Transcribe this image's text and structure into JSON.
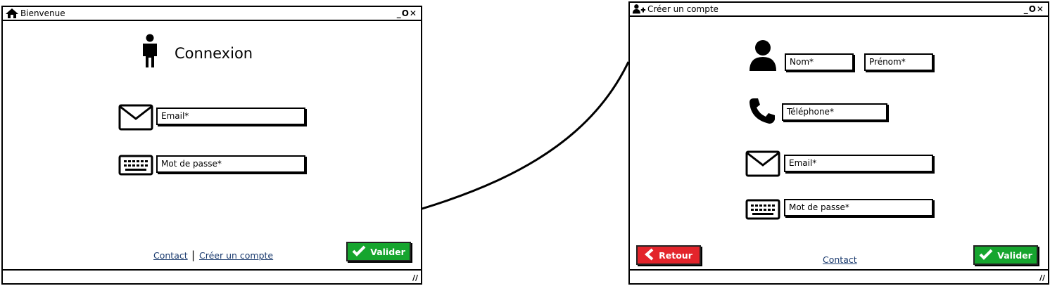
{
  "login_window": {
    "title": "Bienvenue",
    "window_controls": "_O✕",
    "heading": "Connexion",
    "email_placeholder": "Email*",
    "password_placeholder": "Mot de passe*",
    "contact_link": "Contact",
    "separator": "|",
    "create_account_link": "Créer un compte",
    "submit_label": "Valider"
  },
  "register_window": {
    "title": "Créer un compte",
    "window_controls": "_O✕",
    "last_name_placeholder": "Nom*",
    "first_name_placeholder": "Prénom*",
    "phone_placeholder": "Téléphone*",
    "email_placeholder": "Email*",
    "password_placeholder": "Mot de passe*",
    "back_label": "Retour",
    "contact_link": "Contact",
    "submit_label": "Valider"
  },
  "colors": {
    "submit_green": "#16a52e",
    "back_red": "#e3242b",
    "link_blue": "#1a3a6e"
  }
}
